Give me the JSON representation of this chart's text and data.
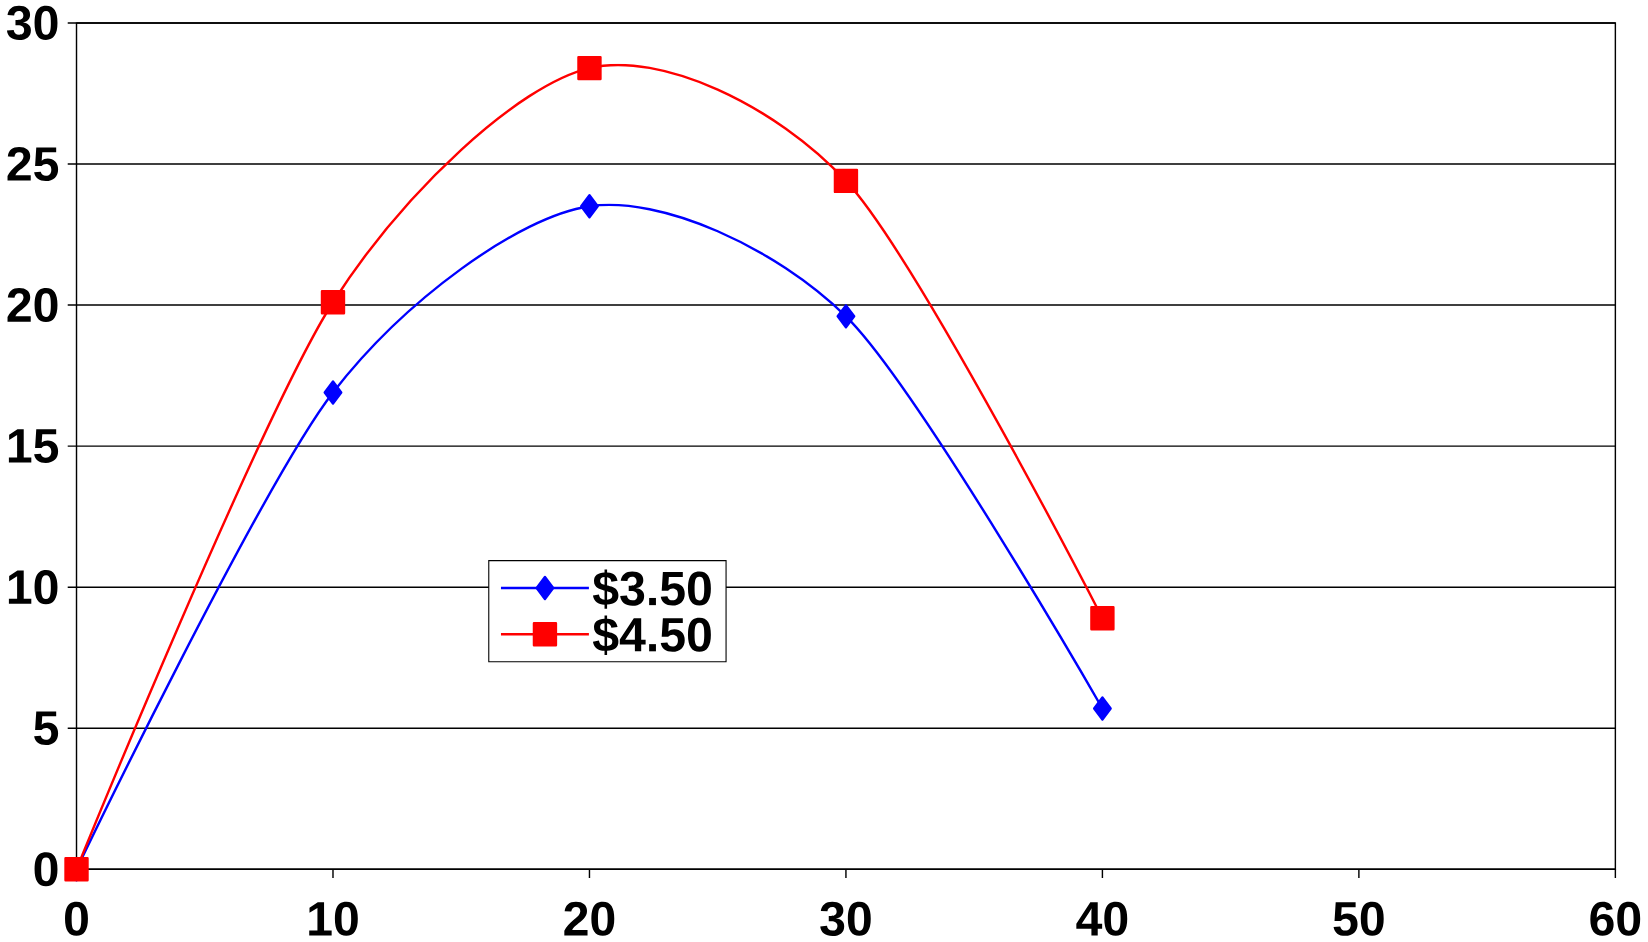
{
  "chart_data": {
    "type": "line",
    "x": [
      0,
      10,
      20,
      30,
      40
    ],
    "series": [
      {
        "name": "$3.50",
        "color": "#0000ff",
        "marker": "diamond",
        "values": [
          0,
          16.9,
          23.5,
          19.6,
          5.7
        ]
      },
      {
        "name": "$4.50",
        "color": "#ff0000",
        "marker": "square",
        "values": [
          0,
          20.1,
          28.4,
          24.4,
          8.9
        ]
      }
    ],
    "xlim": [
      0,
      60
    ],
    "ylim": [
      0,
      30
    ],
    "xticks": [
      0,
      10,
      20,
      30,
      40,
      50,
      60
    ],
    "yticks": [
      0,
      5,
      10,
      15,
      20,
      25,
      30
    ],
    "grid": "y",
    "legend": "center",
    "line_style": "solid"
  }
}
